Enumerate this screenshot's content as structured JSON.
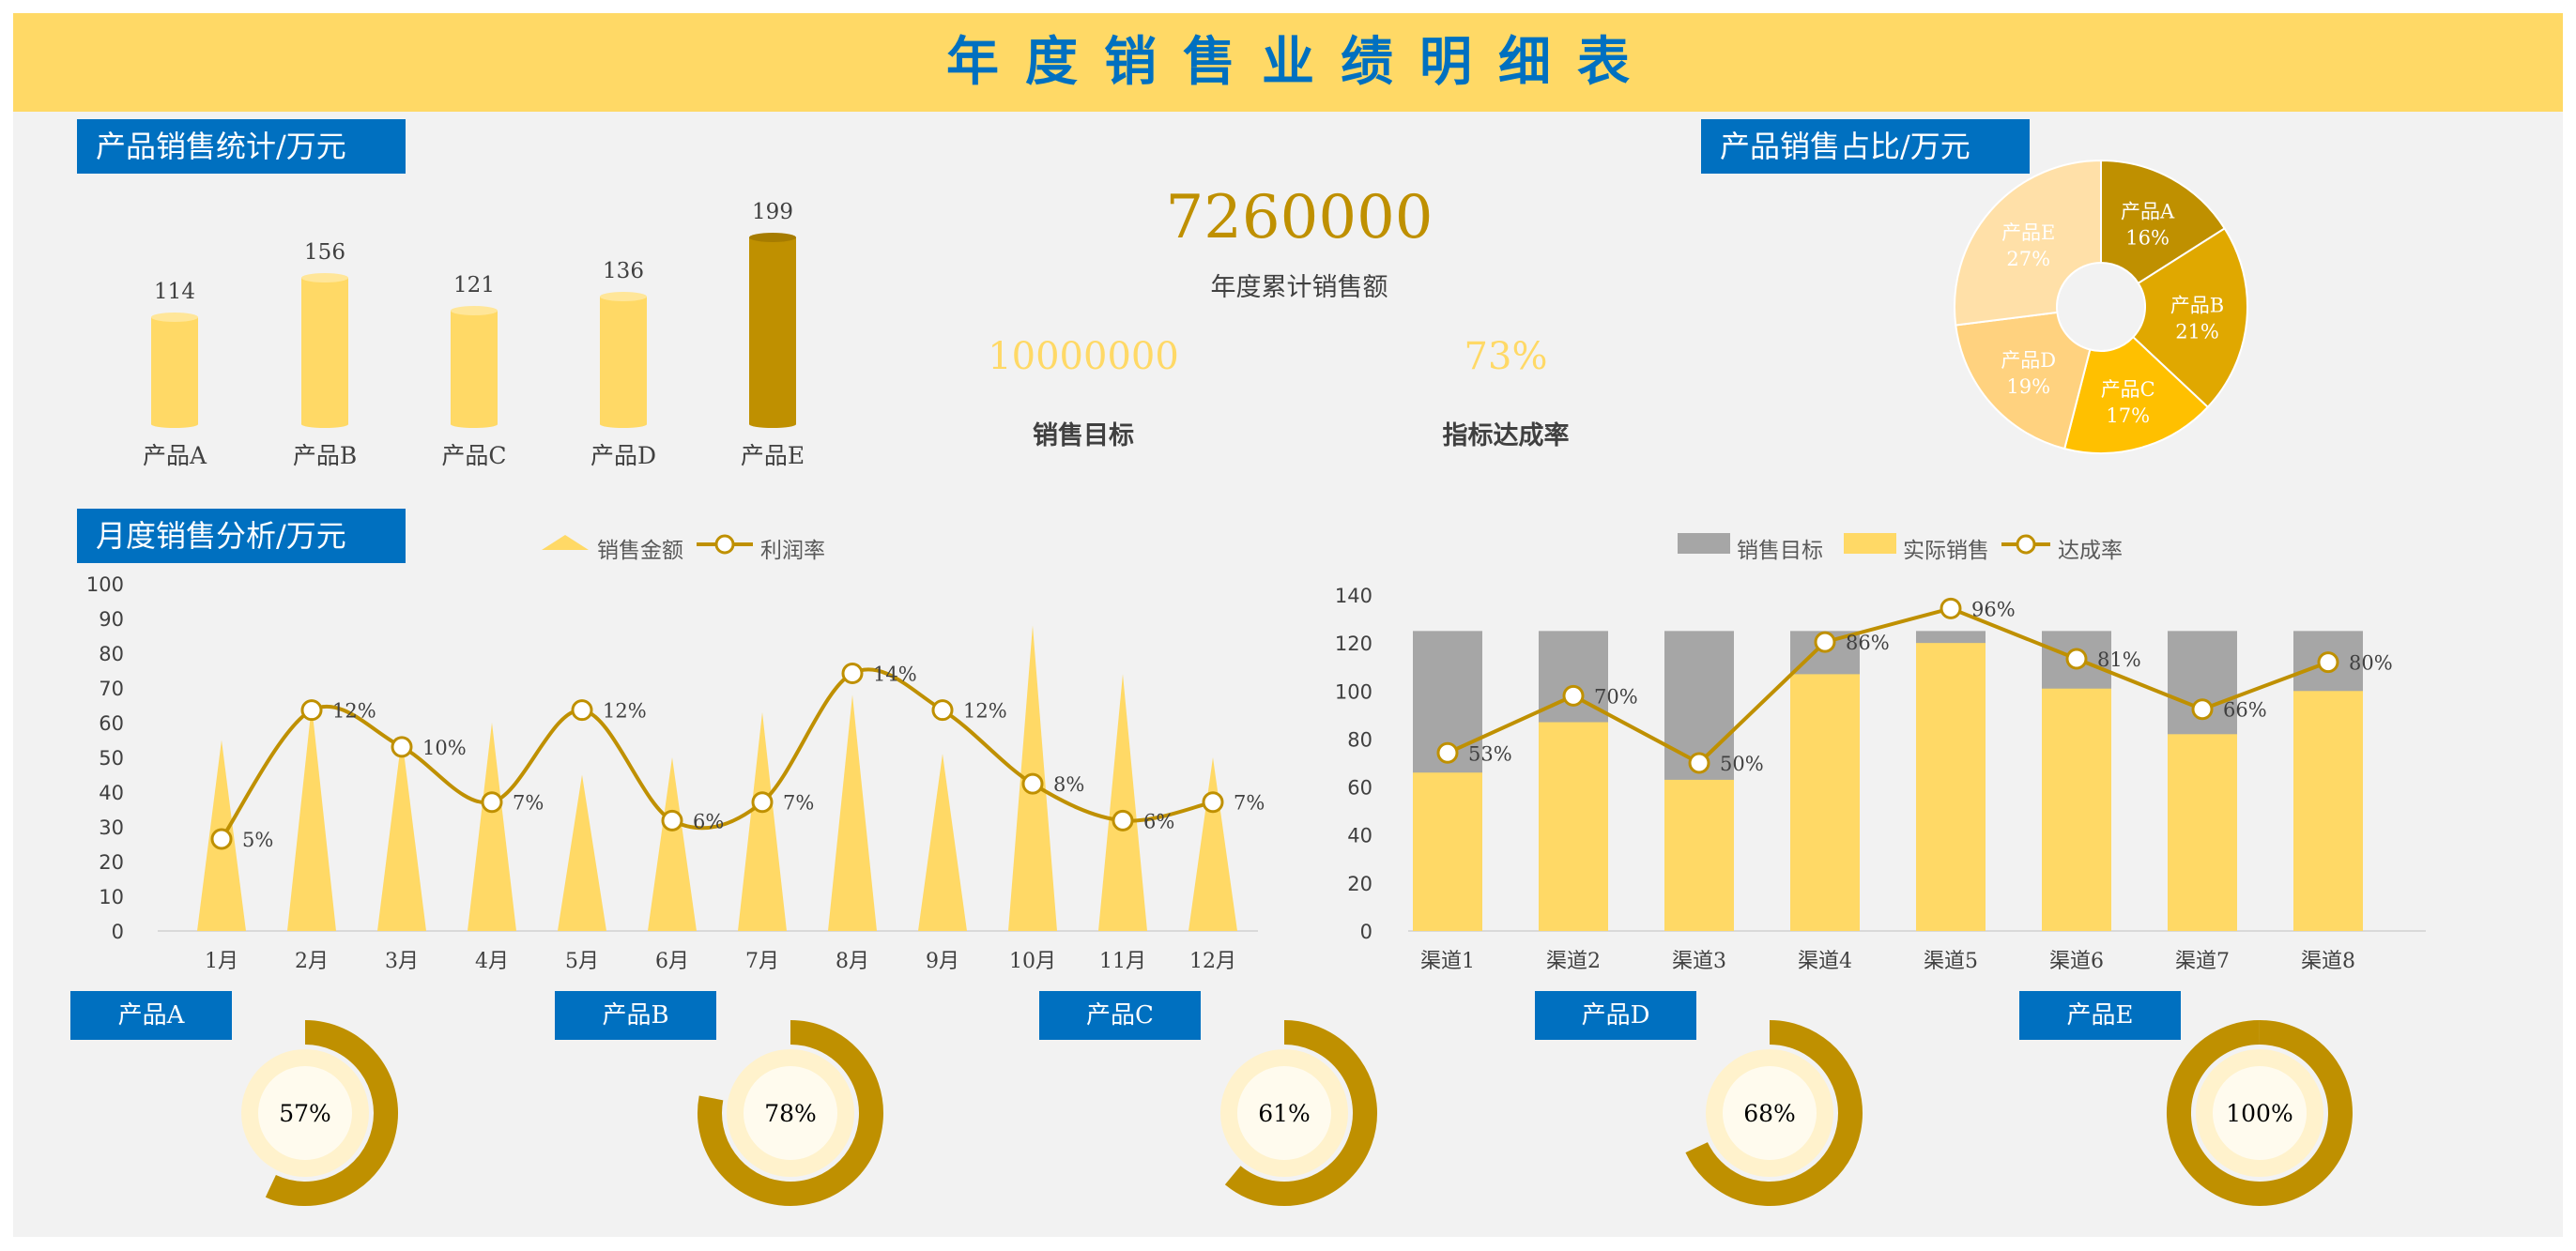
{
  "page": {
    "title": "年度销售业绩明细表"
  },
  "sections": {
    "product_stats": "产品销售统计/万元",
    "product_share": "产品销售占比/万元",
    "monthly": "月度销售分析/万元"
  },
  "kpi": {
    "annual_total": "7260000",
    "annual_total_label": "年度累计销售额",
    "target": "10000000",
    "target_label": "销售目标",
    "rate": "73%",
    "rate_label": "指标达成率"
  },
  "colors": {
    "gold": "#bf9000",
    "yellow": "#ffd966",
    "blue": "#0070c0",
    "gray": "#a6a6a6"
  },
  "chart_data": [
    {
      "id": "product-bars",
      "type": "bar",
      "categories": [
        "产品A",
        "产品B",
        "产品C",
        "产品D",
        "产品E"
      ],
      "values": [
        114,
        156,
        121,
        136,
        199
      ]
    },
    {
      "id": "product-pie",
      "type": "pie",
      "donut": true,
      "slices": [
        {
          "label": "产品A",
          "pct": "16%",
          "value": 16,
          "color": "#bf9000"
        },
        {
          "label": "产品B",
          "pct": "21%",
          "value": 21,
          "color": "#e0a800"
        },
        {
          "label": "产品C",
          "pct": "17%",
          "value": 17,
          "color": "#ffc000"
        },
        {
          "label": "产品D",
          "pct": "19%",
          "value": 19,
          "color": "#ffd27f"
        },
        {
          "label": "产品E",
          "pct": "27%",
          "value": 27,
          "color": "#ffe0a8"
        }
      ]
    },
    {
      "id": "monthly",
      "type": "area",
      "categories": [
        "1月",
        "2月",
        "3月",
        "4月",
        "5月",
        "6月",
        "7月",
        "8月",
        "9月",
        "10月",
        "11月",
        "12月"
      ],
      "ylim": [
        0,
        100
      ],
      "yticks": [
        0,
        10,
        20,
        30,
        40,
        50,
        60,
        70,
        80,
        90,
        100
      ],
      "legend": "top",
      "series": [
        {
          "name": "销售金额",
          "type": "area",
          "values": [
            55,
            65,
            56,
            60,
            45,
            50,
            63,
            68,
            51,
            88,
            74,
            50
          ]
        },
        {
          "name": "利润率",
          "type": "line",
          "values": [
            5,
            12,
            10,
            7,
            12,
            6,
            7,
            14,
            12,
            8,
            6,
            7
          ],
          "labels": [
            "5%",
            "12%",
            "10%",
            "7%",
            "12%",
            "6%",
            "7%",
            "14%",
            "12%",
            "8%",
            "6%",
            "7%"
          ]
        }
      ]
    },
    {
      "id": "channels",
      "type": "bar",
      "categories": [
        "渠道1",
        "渠道2",
        "渠道3",
        "渠道4",
        "渠道5",
        "渠道6",
        "渠道7",
        "渠道8"
      ],
      "ylim": [
        0,
        140
      ],
      "yticks": [
        0,
        20,
        40,
        60,
        80,
        100,
        120,
        140
      ],
      "legend": "top",
      "series": [
        {
          "name": "销售目标",
          "type": "bar",
          "values": [
            125,
            125,
            125,
            125,
            125,
            125,
            125,
            125
          ]
        },
        {
          "name": "实际销售",
          "type": "bar",
          "values": [
            66,
            87,
            63,
            107,
            120,
            101,
            82,
            100
          ]
        },
        {
          "name": "达成率",
          "type": "line",
          "values": [
            53,
            70,
            50,
            86,
            96,
            81,
            66,
            80
          ],
          "labels": [
            "53%",
            "70%",
            "50%",
            "86%",
            "96%",
            "81%",
            "66%",
            "80%"
          ]
        }
      ]
    },
    {
      "id": "product-rings",
      "type": "pie",
      "items": [
        {
          "label": "产品A",
          "value": 57,
          "text": "57%"
        },
        {
          "label": "产品B",
          "value": 78,
          "text": "78%"
        },
        {
          "label": "产品C",
          "value": 61,
          "text": "61%"
        },
        {
          "label": "产品D",
          "value": 68,
          "text": "68%"
        },
        {
          "label": "产品E",
          "value": 100,
          "text": "100%"
        }
      ]
    }
  ]
}
